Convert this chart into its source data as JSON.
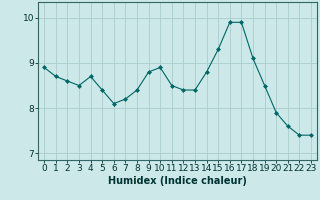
{
  "x": [
    0,
    1,
    2,
    3,
    4,
    5,
    6,
    7,
    8,
    9,
    10,
    11,
    12,
    13,
    14,
    15,
    16,
    17,
    18,
    19,
    20,
    21,
    22,
    23
  ],
  "y": [
    8.9,
    8.7,
    8.6,
    8.5,
    8.7,
    8.4,
    8.1,
    8.2,
    8.4,
    8.8,
    8.9,
    8.5,
    8.4,
    8.4,
    8.8,
    9.3,
    9.9,
    9.9,
    9.1,
    8.5,
    7.9,
    7.6,
    7.4,
    7.4
  ],
  "line_color": "#006666",
  "marker_color": "#006666",
  "bg_color": "#cce8e8",
  "grid_color": "#aacccc",
  "xlabel": "Humidex (Indice chaleur)",
  "xlim": [
    -0.5,
    23.5
  ],
  "ylim": [
    6.85,
    10.35
  ],
  "yticks": [
    7,
    8,
    9,
    10
  ],
  "xticks": [
    0,
    1,
    2,
    3,
    4,
    5,
    6,
    7,
    8,
    9,
    10,
    11,
    12,
    13,
    14,
    15,
    16,
    17,
    18,
    19,
    20,
    21,
    22,
    23
  ],
  "label_fontsize": 7,
  "tick_fontsize": 6.5,
  "grid_lw": 0.6
}
